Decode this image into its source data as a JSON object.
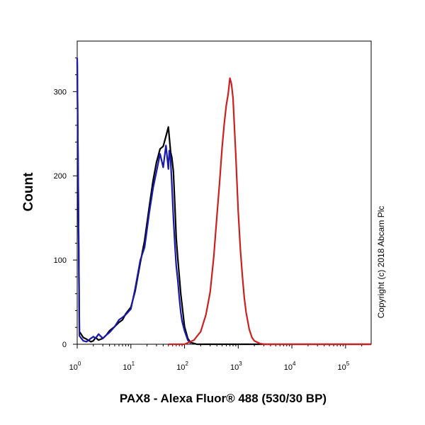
{
  "chart_data": {
    "type": "line",
    "title": "",
    "xlabel": "PAX8 - Alexa Fluor® 488 (530/30 BP)",
    "ylabel": "Count",
    "x_scale": "log",
    "xlim": [
      1,
      300000
    ],
    "ylim": [
      0,
      360
    ],
    "x_ticks": [
      {
        "base": "10",
        "exp": "0",
        "value": 1
      },
      {
        "base": "10",
        "exp": "1",
        "value": 10
      },
      {
        "base": "10",
        "exp": "2",
        "value": 100
      },
      {
        "base": "10",
        "exp": "3",
        "value": 1000
      },
      {
        "base": "10",
        "exp": "4",
        "value": 10000
      },
      {
        "base": "10",
        "exp": "5",
        "value": 100000
      }
    ],
    "y_ticks": [
      {
        "label": "0",
        "value": 0
      },
      {
        "label": "100",
        "value": 100
      },
      {
        "label": "200",
        "value": 200
      },
      {
        "label": "300",
        "value": 300
      }
    ],
    "grid": false,
    "legend": "none",
    "series": [
      {
        "color": "#000000",
        "x": [
          1.0,
          1.1,
          1.3,
          1.5,
          1.8,
          2.0,
          2.2,
          2.5,
          3.0,
          3.5,
          4.0,
          5.0,
          6.0,
          7.0,
          8.0,
          10,
          12,
          15,
          18,
          22,
          26,
          30,
          35,
          40,
          45,
          50,
          55,
          58,
          62,
          66,
          70,
          75,
          80,
          85,
          90,
          100,
          115,
          130,
          150,
          170,
          200,
          300000
        ],
        "y": [
          335,
          15,
          8,
          6,
          3,
          4,
          8,
          5,
          7,
          11,
          16,
          21,
          26,
          29,
          36,
          44,
          63,
          97,
          123,
          163,
          195,
          216,
          232,
          235,
          247,
          258,
          228,
          222,
          205,
          165,
          126,
          101,
          80,
          60,
          46,
          21,
          7,
          2,
          1,
          0,
          0,
          0
        ]
      },
      {
        "color": "#1a1aaa",
        "x": [
          1.0,
          1.1,
          1.3,
          1.5,
          1.8,
          2.0,
          2.2,
          2.5,
          3.0,
          3.5,
          4.0,
          5.0,
          6.0,
          7.0,
          8.0,
          10,
          12,
          15,
          18,
          22,
          26,
          30,
          35,
          40,
          45,
          50,
          52,
          55,
          58,
          62,
          66,
          70,
          75,
          80,
          85,
          90,
          100,
          115,
          130
        ],
        "y": [
          340,
          10,
          4,
          3,
          7,
          9,
          7,
          12,
          7,
          11,
          14,
          21,
          29,
          32,
          35,
          42,
          66,
          100,
          115,
          156,
          186,
          205,
          226,
          210,
          236,
          208,
          230,
          218,
          190,
          150,
          118,
          93,
          75,
          54,
          38,
          27,
          16,
          5,
          1
        ]
      },
      {
        "color": "#cc2020",
        "x": [
          50,
          100,
          150,
          200,
          250,
          300,
          350,
          400,
          450,
          500,
          550,
          600,
          650,
          700,
          750,
          800,
          850,
          900,
          1000,
          1100,
          1200,
          1300,
          1400,
          1600,
          1800,
          2000,
          2500,
          3000,
          4000,
          300000
        ],
        "y": [
          0,
          0,
          5,
          15,
          35,
          62,
          104,
          152,
          192,
          233,
          262,
          284,
          297,
          316,
          309,
          292,
          257,
          226,
          158,
          112,
          80,
          55,
          38,
          18,
          8,
          4,
          1,
          0,
          0,
          0
        ]
      }
    ]
  },
  "copyright": "Copyright (c) 2018 Abcam Plc"
}
